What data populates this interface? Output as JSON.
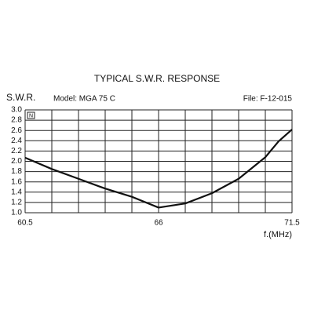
{
  "chart_data": {
    "type": "line",
    "title": "TYPICAL S.W.R. RESPONSE",
    "y_label": "S.W.R.",
    "model": "Model:  MGA 75 C",
    "file": "File:  F-12-015",
    "x_label": "f.(MHz)",
    "badge": "N",
    "x": [
      60.5,
      61.6,
      62.7,
      63.8,
      64.9,
      66,
      67.1,
      68.2,
      69.3,
      70.4,
      70.95,
      71.5
    ],
    "values": [
      2.07,
      1.85,
      1.66,
      1.47,
      1.31,
      1.1,
      1.18,
      1.38,
      1.66,
      2.08,
      2.39,
      2.62
    ],
    "color": "#111111",
    "xlim": [
      60.5,
      71.5
    ],
    "xticks": [
      60.5,
      66,
      71.5
    ],
    "xgrid": [
      61.6,
      62.7,
      63.8,
      64.9,
      67.1,
      68.2,
      69.3,
      70.4
    ],
    "ylim": [
      1,
      3
    ],
    "yticks": [
      {
        "value": 1,
        "label": "1.0"
      },
      1.2,
      1.4,
      1.6,
      1.8,
      {
        "value": 2,
        "label": "2.0"
      },
      2.2,
      2.4,
      2.6,
      2.8,
      {
        "value": 3,
        "label": "3.0"
      }
    ],
    "grid": true
  }
}
